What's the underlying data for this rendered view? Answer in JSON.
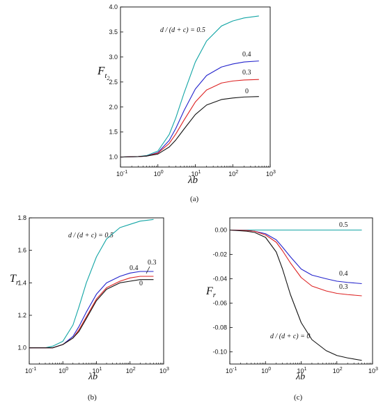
{
  "chart_data": [
    {
      "id": "a",
      "type": "line",
      "panel_label": "(a)",
      "x_scale": "log",
      "xlim": [
        0.1,
        1000
      ],
      "ylim": [
        0.8,
        4.0
      ],
      "x_ticks": [
        0.1,
        1,
        10,
        100,
        1000
      ],
      "y_ticks": [
        1.0,
        1.5,
        2.0,
        2.5,
        3.0,
        3.5,
        4.0
      ],
      "y_tick_labels": [
        "1.0",
        "1.5",
        "2.0",
        "2.5",
        "3.0",
        "3.5",
        "4.0"
      ],
      "xlabel": "λb",
      "ylabel": "F",
      "ylabel_sub": "t",
      "ylabel_subsub": "2",
      "series": [
        {
          "label": "d / (d + c) = 0.5",
          "color": "#12a5a5",
          "x": [
            0.1,
            0.3,
            0.5,
            1,
            2,
            3,
            5,
            10,
            20,
            50,
            100,
            200,
            500
          ],
          "y": [
            1.0,
            1.01,
            1.03,
            1.12,
            1.45,
            1.78,
            2.28,
            2.9,
            3.32,
            3.62,
            3.72,
            3.78,
            3.82
          ]
        },
        {
          "label": "0.4",
          "color": "#2222cc",
          "x": [
            0.1,
            0.3,
            0.5,
            1,
            2,
            3,
            5,
            10,
            20,
            50,
            100,
            200,
            500
          ],
          "y": [
            1.0,
            1.01,
            1.02,
            1.09,
            1.33,
            1.57,
            1.93,
            2.36,
            2.63,
            2.8,
            2.86,
            2.9,
            2.92
          ]
        },
        {
          "label": "0.3",
          "color": "#dd2222",
          "x": [
            0.1,
            0.3,
            0.5,
            1,
            2,
            3,
            5,
            10,
            20,
            50,
            100,
            200,
            500
          ],
          "y": [
            1.0,
            1.01,
            1.02,
            1.08,
            1.27,
            1.46,
            1.74,
            2.1,
            2.34,
            2.48,
            2.52,
            2.54,
            2.55
          ]
        },
        {
          "label": "0",
          "color": "#111111",
          "x": [
            0.1,
            0.3,
            0.5,
            1,
            2,
            3,
            5,
            10,
            20,
            50,
            100,
            200,
            500
          ],
          "y": [
            1.0,
            1.01,
            1.02,
            1.06,
            1.2,
            1.34,
            1.56,
            1.85,
            2.04,
            2.15,
            2.18,
            2.2,
            2.21
          ]
        }
      ]
    },
    {
      "id": "b",
      "type": "line",
      "panel_label": "(b)",
      "x_scale": "log",
      "xlim": [
        0.1,
        1000
      ],
      "ylim": [
        0.9,
        1.8
      ],
      "x_ticks": [
        0.1,
        1,
        10,
        100,
        1000
      ],
      "y_ticks": [
        1.0,
        1.2,
        1.4,
        1.6,
        1.8
      ],
      "y_tick_labels": [
        "1.0",
        "1.2",
        "1.4",
        "1.6",
        "1.8"
      ],
      "xlabel": "λb",
      "ylabel": "T",
      "ylabel_sub": "r",
      "series": [
        {
          "label": "d / (d + c) = 0.5",
          "color": "#12a5a5",
          "x": [
            0.1,
            0.3,
            0.5,
            1,
            2,
            3,
            5,
            10,
            20,
            50,
            100,
            200,
            500
          ],
          "y": [
            1.0,
            1.0,
            1.01,
            1.04,
            1.14,
            1.25,
            1.4,
            1.56,
            1.67,
            1.74,
            1.76,
            1.78,
            1.79
          ]
        },
        {
          "label": "0.4",
          "color": "#2222cc",
          "x": [
            0.1,
            0.3,
            0.5,
            1,
            2,
            3,
            5,
            10,
            20,
            50,
            100,
            200,
            500
          ],
          "y": [
            1.0,
            1.0,
            1.0,
            1.02,
            1.07,
            1.13,
            1.22,
            1.33,
            1.4,
            1.44,
            1.46,
            1.47,
            1.47
          ]
        },
        {
          "label": "0.3",
          "color": "#dd2222",
          "x": [
            0.1,
            0.3,
            0.5,
            1,
            2,
            3,
            5,
            10,
            20,
            50,
            100,
            200,
            500
          ],
          "y": [
            1.0,
            1.0,
            1.0,
            1.02,
            1.06,
            1.11,
            1.19,
            1.3,
            1.37,
            1.41,
            1.43,
            1.44,
            1.44
          ]
        },
        {
          "label": "0",
          "color": "#111111",
          "x": [
            0.1,
            0.3,
            0.5,
            1,
            2,
            3,
            5,
            10,
            20,
            50,
            100,
            200,
            500
          ],
          "y": [
            1.0,
            1.0,
            1.0,
            1.02,
            1.06,
            1.1,
            1.18,
            1.29,
            1.36,
            1.4,
            1.41,
            1.42,
            1.42
          ]
        }
      ]
    },
    {
      "id": "c",
      "type": "line",
      "panel_label": "(c)",
      "x_scale": "log",
      "xlim": [
        0.1,
        1000
      ],
      "ylim": [
        -0.11,
        0.01
      ],
      "x_ticks": [
        0.1,
        1,
        10,
        100,
        1000
      ],
      "y_ticks": [
        0.0,
        -0.02,
        -0.04,
        -0.06,
        -0.08,
        -0.1
      ],
      "y_tick_labels": [
        "0.00",
        "-0.02",
        "-0.04",
        "-0.06",
        "-0.08",
        "-0.10"
      ],
      "xlabel": "λb",
      "ylabel": "F",
      "ylabel_sub": "r",
      "series": [
        {
          "label": "0.5",
          "color": "#12a5a5",
          "x": [
            0.1,
            1,
            10,
            100,
            500
          ],
          "y": [
            0.0,
            0.0,
            0.0,
            0.0,
            0.0
          ]
        },
        {
          "label": "0.4",
          "color": "#2222cc",
          "x": [
            0.1,
            0.3,
            0.5,
            1,
            2,
            3,
            5,
            10,
            20,
            50,
            100,
            200,
            500
          ],
          "y": [
            0.0,
            -0.0003,
            -0.001,
            -0.003,
            -0.008,
            -0.014,
            -0.022,
            -0.032,
            -0.037,
            -0.04,
            -0.042,
            -0.043,
            -0.044
          ]
        },
        {
          "label": "0.3",
          "color": "#dd2222",
          "x": [
            0.1,
            0.3,
            0.5,
            1,
            2,
            3,
            5,
            10,
            20,
            50,
            100,
            200,
            500
          ],
          "y": [
            0.0,
            -0.0004,
            -0.001,
            -0.004,
            -0.01,
            -0.017,
            -0.027,
            -0.039,
            -0.046,
            -0.05,
            -0.052,
            -0.053,
            -0.054
          ]
        },
        {
          "label": "d / (d + c) = 0",
          "color": "#111111",
          "x": [
            0.1,
            0.3,
            0.5,
            1,
            2,
            3,
            5,
            10,
            20,
            50,
            100,
            200,
            500
          ],
          "y": [
            0.0,
            -0.001,
            -0.002,
            -0.006,
            -0.018,
            -0.032,
            -0.053,
            -0.076,
            -0.09,
            -0.099,
            -0.103,
            -0.105,
            -0.107
          ]
        }
      ]
    }
  ]
}
